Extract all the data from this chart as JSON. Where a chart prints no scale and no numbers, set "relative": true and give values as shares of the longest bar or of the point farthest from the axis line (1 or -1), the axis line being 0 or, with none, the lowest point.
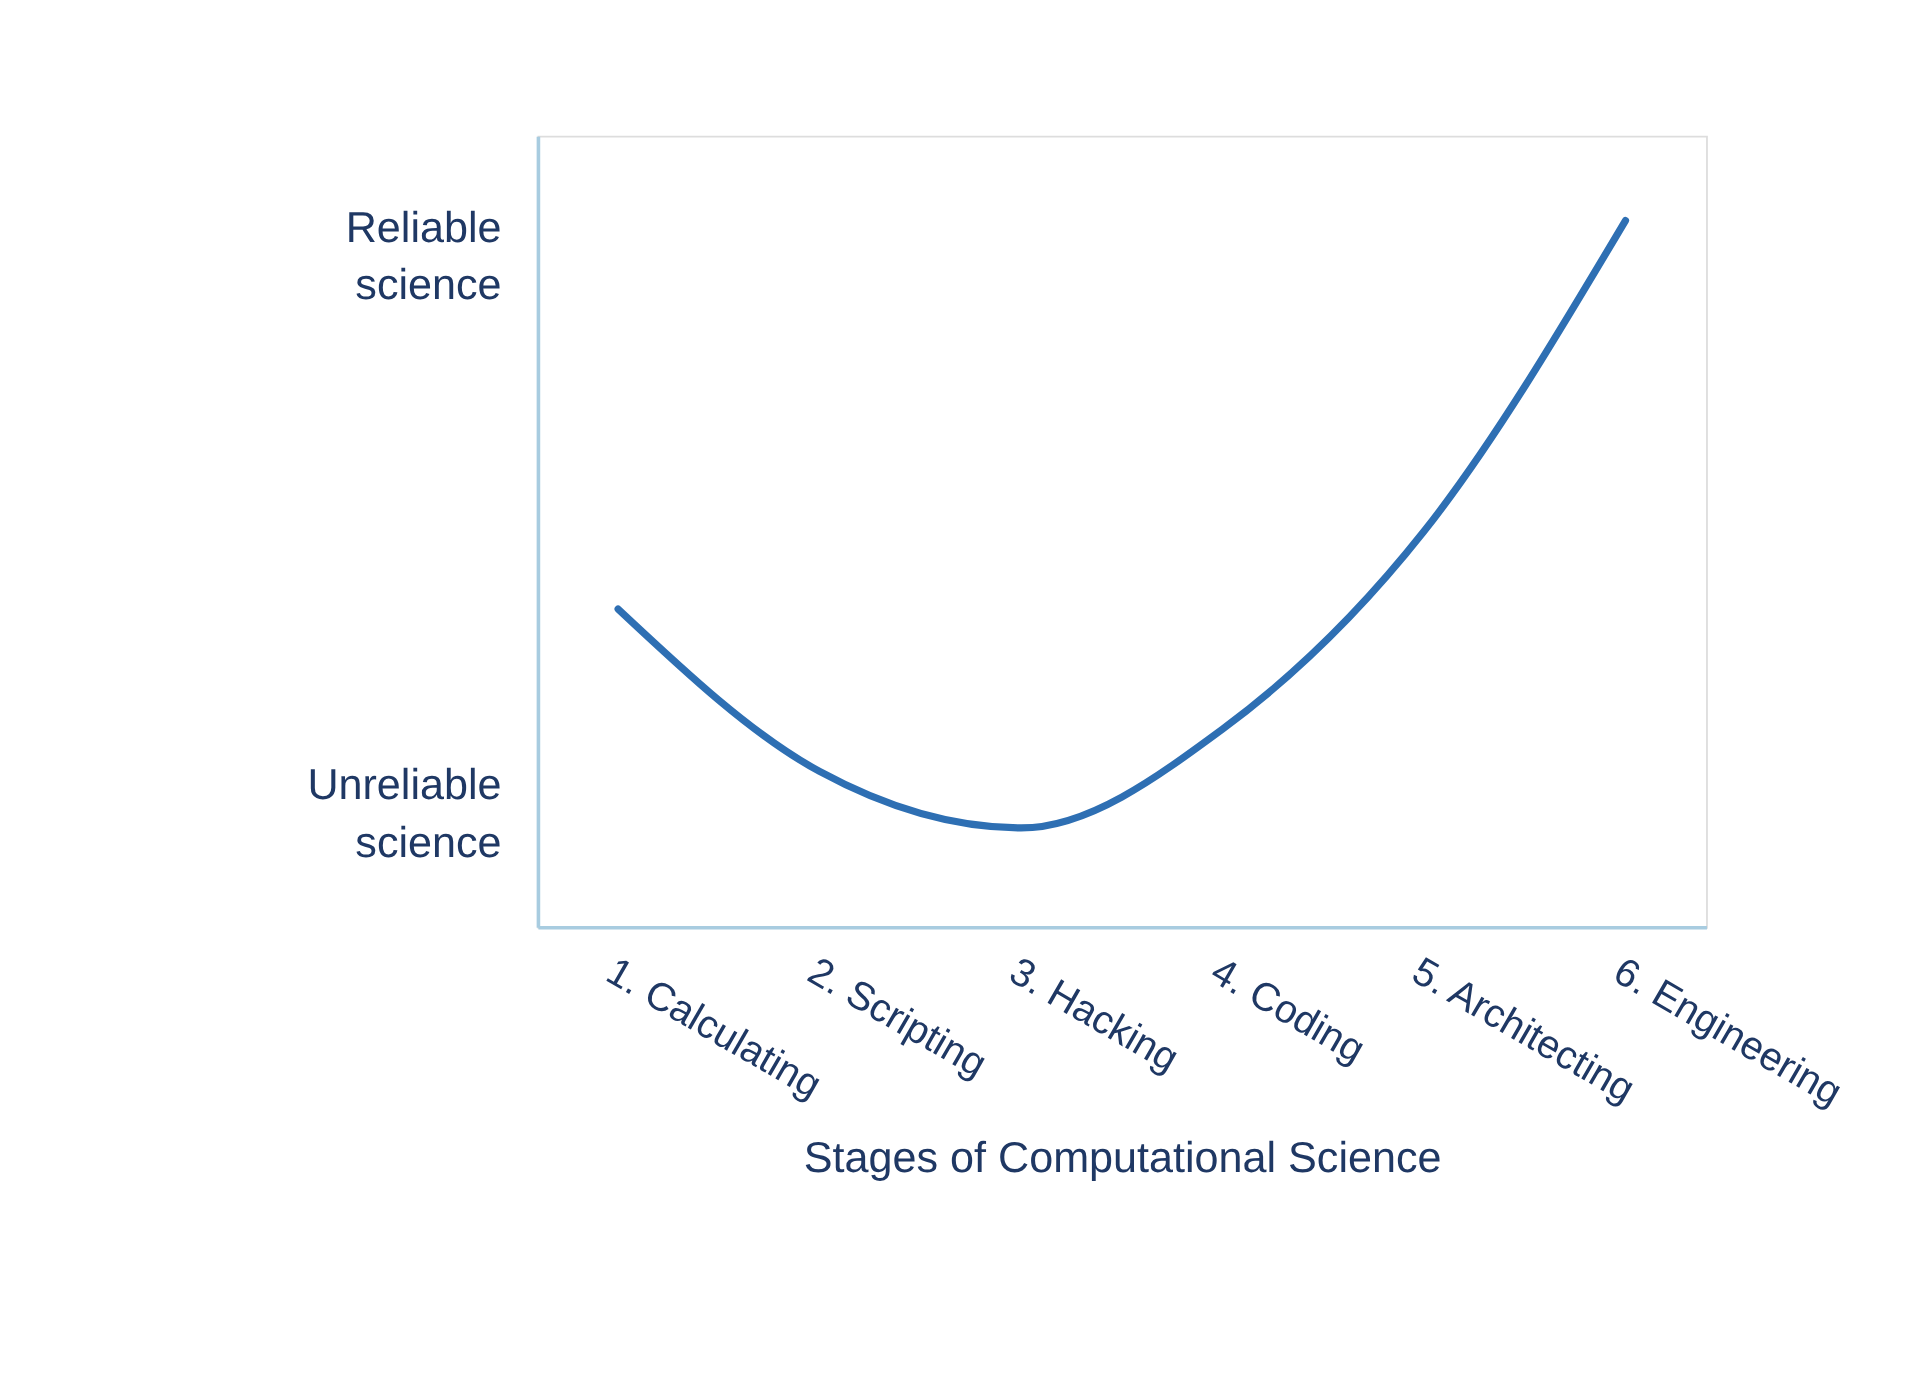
{
  "chart_data": {
    "type": "line",
    "relative": true,
    "categories": [
      "1. Calculating",
      "2. Scripting",
      "3. Hacking",
      "4. Coding",
      "5. Architecting",
      "6. Engineering"
    ],
    "series": [
      {
        "color": "#2e6fb3",
        "values": [
          0.45,
          0.22,
          0.14,
          0.28,
          0.56,
          1.0
        ]
      }
    ],
    "xlabel": "Stages of Computational Science",
    "annotations": [
      "Reliable science",
      "Unreliable science"
    ],
    "grid": false,
    "legend": false,
    "marker": "none",
    "line_style": "solid"
  }
}
